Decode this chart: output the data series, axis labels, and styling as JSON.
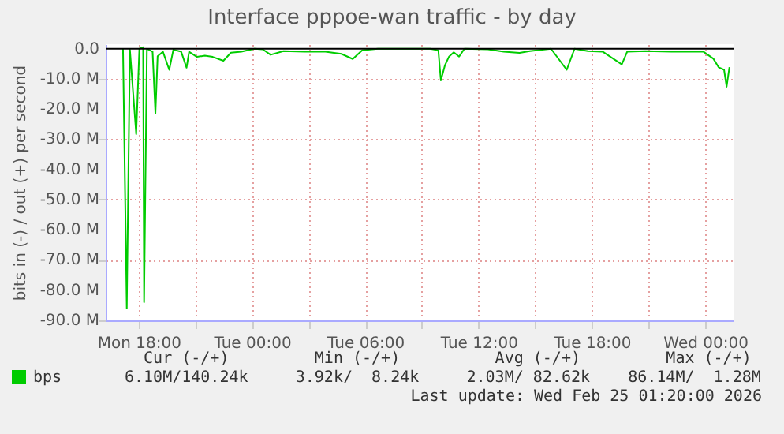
{
  "chart_data": {
    "type": "line",
    "title": "Interface pppoe-wan traffic - by day",
    "ylabel": "bits in (-) / out (+) per second",
    "series": [
      {
        "name": "bps",
        "color": "#00cc00",
        "x": [
          "2026-02-23T17:10",
          "2026-02-23T17:22",
          "2026-02-23T17:32",
          "2026-02-23T17:52",
          "2026-02-23T18:02",
          "2026-02-23T18:14",
          "2026-02-23T18:17",
          "2026-02-23T18:26",
          "2026-02-23T18:44",
          "2026-02-23T18:53",
          "2026-02-23T19:00",
          "2026-02-23T19:17",
          "2026-02-23T19:37",
          "2026-02-23T19:50",
          "2026-02-23T20:15",
          "2026-02-23T20:32",
          "2026-02-23T20:40",
          "2026-02-23T21:05",
          "2026-02-23T21:30",
          "2026-02-23T21:55",
          "2026-02-23T22:29",
          "2026-02-23T22:53",
          "2026-02-23T23:26",
          "2026-02-24T00:08",
          "2026-02-24T00:34",
          "2026-02-24T00:59",
          "2026-02-24T01:40",
          "2026-02-24T02:47",
          "2026-02-24T03:53",
          "2026-02-24T04:44",
          "2026-02-24T05:20",
          "2026-02-24T05:50",
          "2026-02-24T06:40",
          "2026-02-24T07:47",
          "2026-02-24T08:36",
          "2026-02-24T09:26",
          "2026-02-24T09:52",
          "2026-02-24T10:00",
          "2026-02-24T10:13",
          "2026-02-24T10:26",
          "2026-02-24T10:41",
          "2026-02-24T10:58",
          "2026-02-24T11:15",
          "2026-02-24T12:30",
          "2026-02-24T13:20",
          "2026-02-24T14:10",
          "2026-02-24T14:43",
          "2026-02-24T15:50",
          "2026-02-24T16:40",
          "2026-02-24T17:05",
          "2026-02-24T17:47",
          "2026-02-24T18:35",
          "2026-02-24T19:35",
          "2026-02-24T19:52",
          "2026-02-24T20:50",
          "2026-02-24T22:13",
          "2026-02-24T23:53",
          "2026-02-25T00:26",
          "2026-02-25T00:43",
          "2026-02-25T01:00",
          "2026-02-25T01:08",
          "2026-02-25T01:17"
        ],
        "values": [
          0,
          -86.1,
          -0.3,
          -28.3,
          0,
          0.5,
          -84,
          0,
          -1,
          -21.5,
          -2.5,
          -1,
          -7,
          -0.3,
          -1,
          -6.3,
          -1,
          -2.7,
          -2.3,
          -2.7,
          -4,
          -1.3,
          -1,
          0,
          -0.2,
          -2,
          -0.8,
          -1,
          -1,
          -1.7,
          -3.4,
          -0.5,
          0,
          0,
          0,
          0,
          -0.5,
          -10.5,
          -5.5,
          -2.6,
          -1.2,
          -2.6,
          0,
          -0.2,
          -1,
          -1.4,
          -0.8,
          0,
          -7,
          0,
          -0.8,
          -1,
          -5.2,
          -1,
          -0.8,
          -1,
          -0.9,
          -3.3,
          -6.2,
          -7,
          -12.6,
          -6.1
        ]
      }
    ],
    "xlim": [
      "2026-02-23T16:15",
      "2026-02-25T01:30"
    ],
    "xticks": [
      {
        "value": "2026-02-23T18:00",
        "label": "Mon 18:00"
      },
      {
        "value": "2026-02-23T21:00",
        "label": null
      },
      {
        "value": "2026-02-24T00:00",
        "label": "Tue 00:00"
      },
      {
        "value": "2026-02-24T03:00",
        "label": null
      },
      {
        "value": "2026-02-24T06:00",
        "label": "Tue 06:00"
      },
      {
        "value": "2026-02-24T09:00",
        "label": null
      },
      {
        "value": "2026-02-24T12:00",
        "label": "Tue 12:00"
      },
      {
        "value": "2026-02-24T15:00",
        "label": null
      },
      {
        "value": "2026-02-24T18:00",
        "label": "Tue 18:00"
      },
      {
        "value": "2026-02-24T21:00",
        "label": null
      },
      {
        "value": "2026-02-25T00:00",
        "label": "Wed 00:00"
      }
    ],
    "ylim": [
      -90,
      1.5
    ],
    "yticks": [
      {
        "value": 0,
        "label": "0.0"
      },
      {
        "value": -10,
        "label": "-10.0 M"
      },
      {
        "value": -20,
        "label": "-20.0 M"
      },
      {
        "value": -30,
        "label": "-30.0 M"
      },
      {
        "value": -40,
        "label": "-40.0 M"
      },
      {
        "value": -50,
        "label": "-50.0 M"
      },
      {
        "value": -60,
        "label": "-60.0 M"
      },
      {
        "value": -70,
        "label": "-70.0 M"
      },
      {
        "value": -80,
        "label": "-80.0 M"
      },
      {
        "value": -90,
        "label": "-90.0 M"
      }
    ],
    "ref_lines": [
      {
        "axis": "y",
        "value": 0,
        "color": "#000000"
      }
    ],
    "grid": true,
    "legend": "bottom left",
    "marker": "none",
    "line_style": "solid",
    "annotations": [
      "  Cur (-/+)         Min (-/+)          Avg (-/+)         Max (-/+)",
      "6.10M/140.24k     3.92k/  8.24k     2.03M/ 82.62k    86.14M/  1.28M",
      "Last update: Wed Feb 25 01:20:00 2026"
    ]
  }
}
